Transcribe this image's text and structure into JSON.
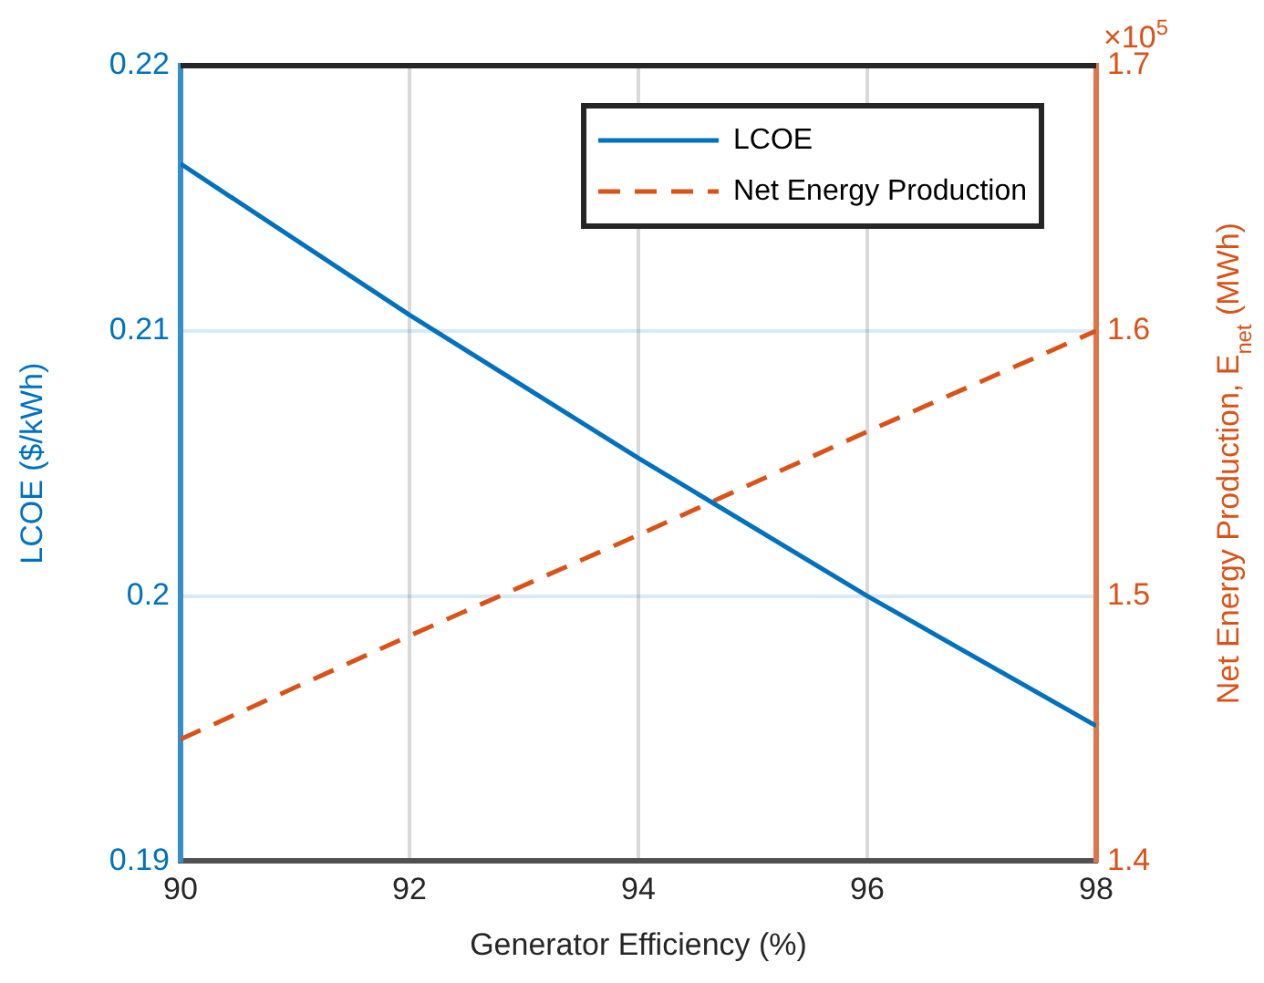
{
  "chart_data": {
    "type": "line",
    "xlabel": "Generator Efficiency (%)",
    "ylabel": "LCOE ($/kWh)",
    "y2label": "Net Energy Production, E$_{net}$ (MWh)",
    "x": [
      90,
      92,
      94,
      96,
      98
    ],
    "series": [
      {
        "name": "LCOE",
        "color": "#0072bd",
        "values": [
          0.2163,
          0.2106,
          0.2052,
          0.2,
          0.1951
        ],
        "line_style": "solid"
      },
      {
        "name": "Net Energy Production",
        "color": "#d95319",
        "values": [
          1.446,
          1.485,
          1.523,
          1.562,
          1.6
        ],
        "axis": "y2",
        "line_style": "dashed"
      }
    ],
    "xlim": [
      90,
      98
    ],
    "xticks": [
      90,
      92,
      94,
      96,
      98
    ],
    "ylim": [
      0.19,
      0.22
    ],
    "yticks": [
      0.19,
      0.2,
      0.21,
      0.22
    ],
    "y2lim": [
      1.4,
      1.7
    ],
    "y2ticks": [
      1.4,
      1.5,
      1.6,
      1.7
    ],
    "annotations": [
      "×10$^{5}$"
    ],
    "grid": true,
    "legend": "top right",
    "marker": "none"
  }
}
